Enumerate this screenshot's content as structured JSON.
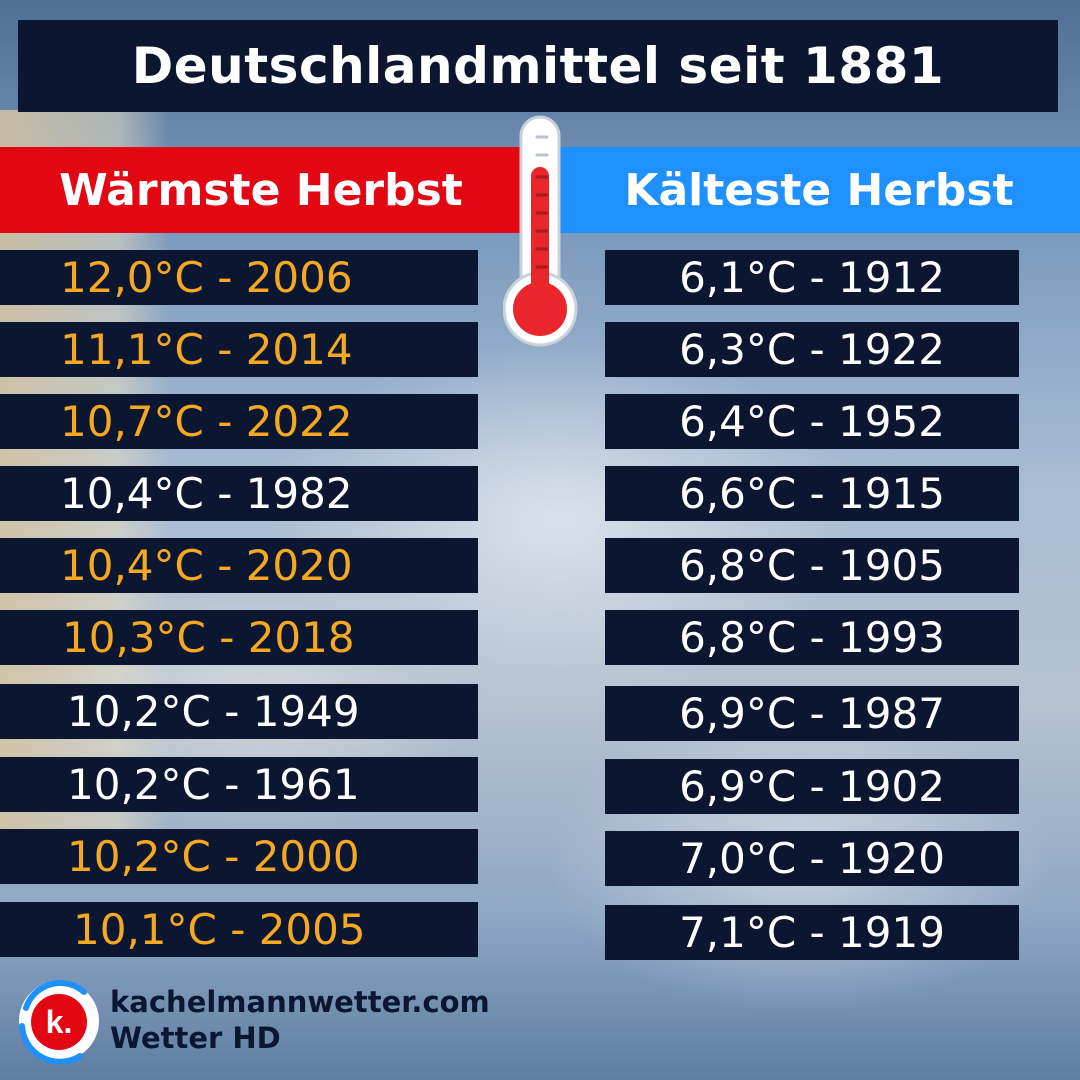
{
  "title": "Deutschlandmittel seit 1881",
  "warm": {
    "header": "Wärmste Herbst",
    "rows": [
      {
        "text": "12,0°C - 2006",
        "highlight": true
      },
      {
        "text": "11,1°C - 2014",
        "highlight": true
      },
      {
        "text": "10,7°C - 2022",
        "highlight": true
      },
      {
        "text": "10,4°C - 1982",
        "highlight": false
      },
      {
        "text": "10,4°C - 2020",
        "highlight": true
      },
      {
        "text": "10,3°C - 2018",
        "highlight": true
      },
      {
        "text": "10,2°C - 1949",
        "highlight": false
      },
      {
        "text": "10,2°C - 1961",
        "highlight": false
      },
      {
        "text": "10,2°C - 2000",
        "highlight": true
      },
      {
        "text": "10,1°C - 2005",
        "highlight": true
      }
    ]
  },
  "cold": {
    "header": "Kälteste Herbst",
    "rows": [
      "6,1°C - 1912",
      "6,3°C - 1922",
      "6,4°C - 1952",
      "6,6°C - 1915",
      "6,8°C - 1905",
      "6,8°C - 1993",
      "6,9°C - 1987",
      "6,9°C - 1902",
      "7,0°C - 1920",
      "7,1°C - 1919"
    ]
  },
  "colors": {
    "highlight": "#f7a823",
    "normal": "#ffffff",
    "warm_header": "#e30613",
    "cold_header": "#1e90ff",
    "row_bg": "#0b1630"
  },
  "icons": {
    "thermometer": "thermometer-icon",
    "logo": "kachelmann-logo-icon"
  },
  "logo_letter": "k.",
  "brand": {
    "site": "kachelmannwetter.com",
    "sub": "Wetter HD"
  }
}
